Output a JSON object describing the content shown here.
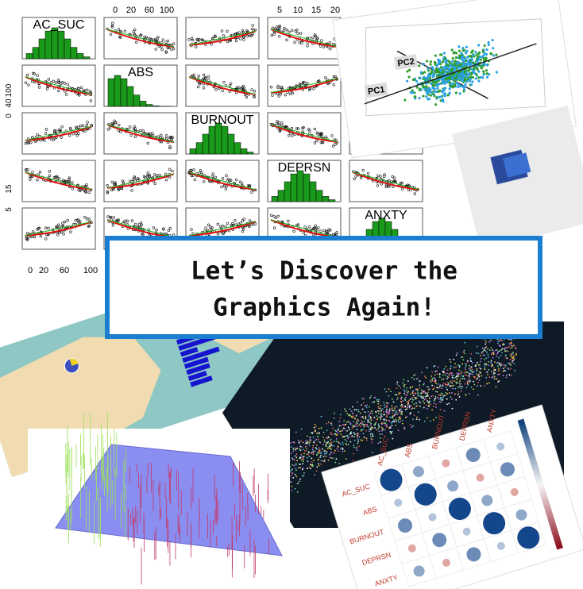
{
  "banner": {
    "line1": "Let’s Discover the",
    "line2": "Graphics Again!"
  },
  "scatter_matrix": {
    "variables": [
      "AC_SUC",
      "ABS",
      "BURNOUT",
      "DEPRSN",
      "ANXTY"
    ],
    "top_ticks_a": [
      "0",
      "20",
      "60",
      "100"
    ],
    "top_ticks_b": [
      "5",
      "10",
      "15",
      "20"
    ],
    "left_ticks_a": [
      "100",
      "40",
      "0"
    ],
    "left_ticks_b": [
      "15",
      "5"
    ],
    "bottom_ticks": [
      "0",
      "20",
      "60",
      "100"
    ]
  },
  "pca_plot": {
    "axes": [
      "PC2",
      "PC1"
    ]
  },
  "correlation_plot": {
    "variables": [
      "AC_SUC",
      "ABS",
      "BURNOUT",
      "DEPRSN",
      "ANXTY"
    ]
  }
}
